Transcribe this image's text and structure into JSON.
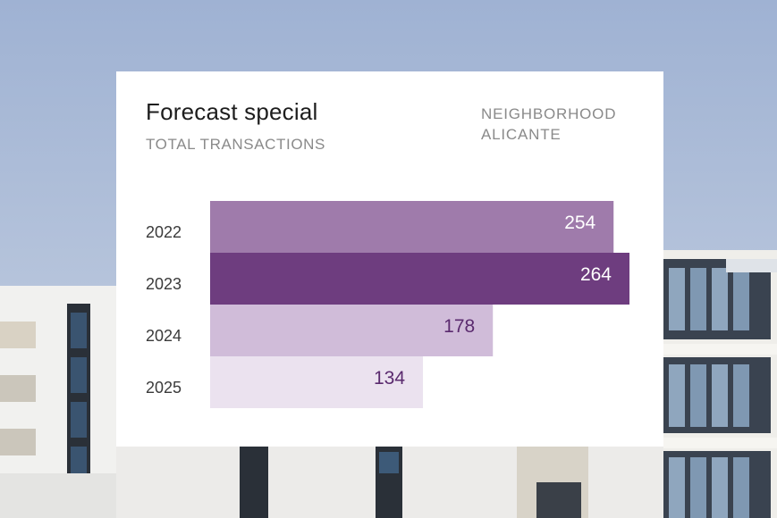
{
  "colors": {
    "sky_top": "#9fb2d3",
    "sky_bottom": "#c8d2e2",
    "facade": "#f2f2f0",
    "window": "#2e3440",
    "accent_dark": "#6e3d7f",
    "bar_2022": "#9f7bab",
    "bar_2023": "#6e3d7f",
    "bar_2024": "#d0bcd9",
    "bar_2025": "#ebe2ef",
    "label_light": "#ffffff",
    "label_dark": "#5a2a6e"
  },
  "card": {
    "title": "Forecast special",
    "subtitle": "TOTAL TRANSACTIONS",
    "neighborhood_line1": "NEIGHBORHOOD",
    "neighborhood_line2": "ALICANTE"
  },
  "chart_data": {
    "type": "bar",
    "orientation": "horizontal",
    "categories": [
      "2022",
      "2023",
      "2024",
      "2025"
    ],
    "values": [
      254,
      264,
      178,
      134
    ],
    "xlim": [
      0,
      264
    ],
    "title": "Forecast special",
    "subtitle": "TOTAL TRANSACTIONS",
    "grid": false
  }
}
